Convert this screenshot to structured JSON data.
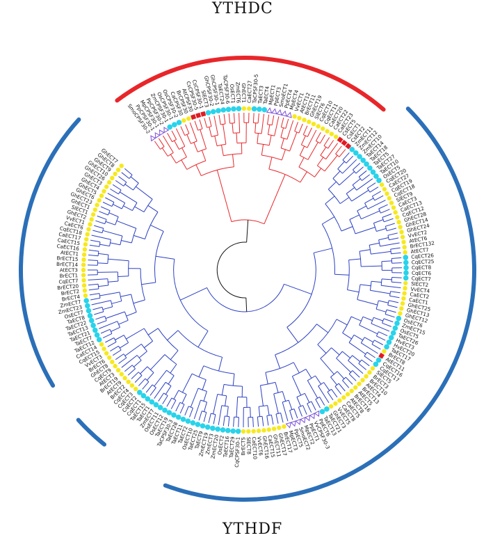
{
  "titles": {
    "top": "YTHDC",
    "bottom": "YTHDF"
  },
  "colors": {
    "ythdc_branch": "#e8262a",
    "ythdf_branch": "#2a3fc4",
    "ythdc_arc": "#e8262a",
    "ythdf_arc": "#2b6fb8",
    "root_branch": "#111111",
    "marker_cyan": "#29d3ea",
    "marker_yellow": "#f7e81d",
    "marker_red": "#e01b24",
    "marker_triangle": "#7a4fd6"
  },
  "leaves": [
    {
      "label": "SmoCPSF30-2",
      "marker": "triangle"
    },
    {
      "label": "PpCPSF30-1",
      "marker": "triangle"
    },
    {
      "label": "MpCPSF30-1",
      "marker": "triangle"
    },
    {
      "label": "PpCPSF30-2",
      "marker": "triangle"
    },
    {
      "label": "ZmCPSF30-1",
      "marker": "cyan"
    },
    {
      "label": "OsCPSF30-1",
      "marker": "cyan"
    },
    {
      "label": "OsCPSF30-2",
      "marker": "cyan"
    },
    {
      "label": "CaCPSF30",
      "marker": "yellow"
    },
    {
      "label": "BrCPSF30",
      "marker": "yellow"
    },
    {
      "label": "AtCPSF30",
      "marker": "red"
    },
    {
      "label": "CsCPSF30-5",
      "marker": "red"
    },
    {
      "label": "CsCPSF30-1",
      "marker": "red"
    },
    {
      "label": "SlECT3",
      "marker": "cyan"
    },
    {
      "label": "GhCPSF30-2",
      "marker": "cyan"
    },
    {
      "label": "GhCPSF30-1",
      "marker": "cyan"
    },
    {
      "label": "TaECT24",
      "marker": "cyan"
    },
    {
      "label": "TaCPSF30-6",
      "marker": "cyan"
    },
    {
      "label": "OsECT1",
      "marker": "cyan"
    },
    {
      "label": "ZmECT6",
      "marker": "cyan"
    },
    {
      "label": "GhECT1",
      "marker": "yellow"
    },
    {
      "label": "CaECT27",
      "marker": "yellow"
    },
    {
      "label": "TaCPSF30-5",
      "marker": "cyan"
    },
    {
      "label": "TaECT3",
      "marker": "cyan"
    },
    {
      "label": "TaECT4",
      "marker": "cyan"
    },
    {
      "label": "MpECT1",
      "marker": "triangle"
    },
    {
      "label": "PpECT3",
      "marker": "triangle"
    },
    {
      "label": "SmoECT1",
      "marker": "triangle"
    },
    {
      "label": "PpECT4",
      "marker": "triangle"
    },
    {
      "label": "MpECT4",
      "marker": "triangle"
    },
    {
      "label": "VvECT1",
      "marker": "yellow"
    },
    {
      "label": "AtECT12",
      "marker": "yellow"
    },
    {
      "label": "BrECT11",
      "marker": "yellow"
    },
    {
      "label": "GhECT19",
      "marker": "yellow"
    },
    {
      "label": "SlECT6",
      "marker": "yellow"
    },
    {
      "label": "CqECT10",
      "marker": "yellow"
    },
    {
      "label": "CqECT11",
      "marker": "yellow"
    },
    {
      "label": "CaECT20",
      "marker": "yellow"
    },
    {
      "label": "CaECT22",
      "marker": "yellow"
    },
    {
      "label": "CaECT23",
      "marker": "yellow"
    },
    {
      "label": "CsECT5",
      "marker": "red"
    },
    {
      "label": "CsECT1",
      "marker": "red"
    },
    {
      "label": "CsECT2",
      "marker": "red"
    },
    {
      "label": "ZmECT11",
      "marker": "cyan"
    },
    {
      "label": "ZmECT12",
      "marker": "cyan"
    },
    {
      "label": "ZmECT10",
      "marker": "cyan"
    },
    {
      "label": "TaECT14",
      "marker": "cyan"
    },
    {
      "label": "TaECT18",
      "marker": "cyan"
    },
    {
      "label": "TaECT5",
      "marker": "cyan"
    },
    {
      "label": "TaECT27",
      "marker": "cyan"
    },
    {
      "label": "TaECT10",
      "marker": "cyan"
    },
    {
      "label": "OsECT5",
      "marker": "cyan"
    },
    {
      "label": "CqECT20",
      "marker": "yellow"
    },
    {
      "label": "CaECT27",
      "marker": "yellow"
    },
    {
      "label": "CqECT19",
      "marker": "yellow"
    },
    {
      "label": "CqECT18",
      "marker": "yellow"
    },
    {
      "label": "SlECT9",
      "marker": "yellow"
    },
    {
      "label": "CaECT3",
      "marker": "yellow"
    },
    {
      "label": "CaECT13",
      "marker": "yellow"
    },
    {
      "label": "CqECT12",
      "marker": "yellow"
    },
    {
      "label": "GhECT28",
      "marker": "yellow"
    },
    {
      "label": "GhECT14",
      "marker": "yellow"
    },
    {
      "label": "GhECT24",
      "marker": "yellow"
    },
    {
      "label": "VvECT2",
      "marker": "yellow"
    },
    {
      "label": "AtECT6",
      "marker": "yellow"
    },
    {
      "label": "BrECT132",
      "marker": "yellow"
    },
    {
      "label": "AtECT7",
      "marker": "yellow"
    },
    {
      "label": "CqECT26",
      "marker": "cyan"
    },
    {
      "label": "CqECT25",
      "marker": "cyan"
    },
    {
      "label": "CqECT8",
      "marker": "cyan"
    },
    {
      "label": "CqECT6",
      "marker": "cyan"
    },
    {
      "label": "CqECT7",
      "marker": "cyan"
    },
    {
      "label": "SlECT2",
      "marker": "yellow"
    },
    {
      "label": "VvECT4",
      "marker": "yellow"
    },
    {
      "label": "CaECT2",
      "marker": "yellow"
    },
    {
      "label": "CaECT1",
      "marker": "yellow"
    },
    {
      "label": "GhECT25",
      "marker": "yellow"
    },
    {
      "label": "GhECT13",
      "marker": "yellow"
    },
    {
      "label": "GhECT12",
      "marker": "yellow"
    },
    {
      "label": "OsECT6",
      "marker": "cyan"
    },
    {
      "label": "ZmECT15",
      "marker": "cyan"
    },
    {
      "label": "OsECT5",
      "marker": "cyan"
    },
    {
      "label": "TaECT26",
      "marker": "cyan"
    },
    {
      "label": "HvECT3",
      "marker": "cyan"
    },
    {
      "label": "HvECT20",
      "marker": "cyan"
    },
    {
      "label": "TaECT17",
      "marker": "cyan"
    },
    {
      "label": "BrECT8",
      "marker": "yellow"
    },
    {
      "label": "AtECT11",
      "marker": "red"
    },
    {
      "label": "CqECT16",
      "marker": "cyan"
    },
    {
      "label": "CqECT17",
      "marker": "cyan"
    },
    {
      "label": "SlECT5",
      "marker": "yellow"
    },
    {
      "label": "BrECT3",
      "marker": "yellow"
    },
    {
      "label": "BrECT10",
      "marker": "yellow"
    },
    {
      "label": "AtECT4",
      "marker": "yellow"
    },
    {
      "label": "BrECT13",
      "marker": "yellow"
    },
    {
      "label": "AtECT5",
      "marker": "yellow"
    },
    {
      "label": "BrECT16",
      "marker": "yellow"
    },
    {
      "label": "AtECT8",
      "marker": "yellow"
    },
    {
      "label": "CaECT5",
      "marker": "yellow"
    },
    {
      "label": "CaECT8",
      "marker": "yellow"
    },
    {
      "label": "VvECT5",
      "marker": "yellow"
    },
    {
      "label": "GhECT3",
      "marker": "yellow"
    },
    {
      "label": "TaECT21",
      "marker": "cyan"
    },
    {
      "label": "TaECT13",
      "marker": "cyan"
    },
    {
      "label": "PpECT6",
      "marker": "triangle"
    },
    {
      "label": "VvCPSF30-3",
      "marker": "triangle"
    },
    {
      "label": "PpECT1",
      "marker": "triangle"
    },
    {
      "label": "MpECT2",
      "marker": "triangle"
    },
    {
      "label": "SmoECT2",
      "marker": "triangle"
    },
    {
      "label": "PpECT5",
      "marker": "triangle"
    },
    {
      "label": "MpECT3",
      "marker": "triangle"
    },
    {
      "label": "BrECT17",
      "marker": "yellow"
    },
    {
      "label": "GhECT17",
      "marker": "yellow"
    },
    {
      "label": "GhECT11",
      "marker": "yellow"
    },
    {
      "label": "CaECT15",
      "marker": "yellow"
    },
    {
      "label": "GhECT16",
      "marker": "yellow"
    },
    {
      "label": "VvECT6",
      "marker": "yellow"
    },
    {
      "label": "CaECT10",
      "marker": "yellow"
    },
    {
      "label": "SlECT8",
      "marker": "yellow"
    },
    {
      "label": "BrECT5",
      "marker": "yellow"
    },
    {
      "label": "CqCPSF30-1",
      "marker": "cyan"
    },
    {
      "label": "TaECT29",
      "marker": "cyan"
    },
    {
      "label": "TaECT16",
      "marker": "cyan"
    },
    {
      "label": "OsECT2",
      "marker": "cyan"
    },
    {
      "label": "ZmECT20",
      "marker": "cyan"
    },
    {
      "label": "ZmECT3",
      "marker": "cyan"
    },
    {
      "label": "ZmECT19",
      "marker": "cyan"
    },
    {
      "label": "TaECT9",
      "marker": "cyan"
    },
    {
      "label": "TaECT25",
      "marker": "cyan"
    },
    {
      "label": "OsECT10",
      "marker": "cyan"
    },
    {
      "label": "TaECT2",
      "marker": "cyan"
    },
    {
      "label": "TaECT11",
      "marker": "cyan"
    },
    {
      "label": "TaECT28",
      "marker": "cyan"
    },
    {
      "label": "TaCPSF30-3",
      "marker": "cyan"
    },
    {
      "label": "TaECT19",
      "marker": "cyan"
    },
    {
      "label": "OsECT12",
      "marker": "cyan"
    },
    {
      "label": "OsECT11",
      "marker": "cyan"
    },
    {
      "label": "ZmECT7",
      "marker": "cyan"
    },
    {
      "label": "TaECT1",
      "marker": "cyan"
    },
    {
      "label": "TaECT15",
      "marker": "cyan"
    },
    {
      "label": "CqECT1",
      "marker": "cyan"
    },
    {
      "label": "CqECT2",
      "marker": "cyan"
    },
    {
      "label": "CqECT3",
      "marker": "yellow"
    },
    {
      "label": "CqECT4",
      "marker": "yellow"
    },
    {
      "label": "BrECT2",
      "marker": "yellow"
    },
    {
      "label": "AtECT9",
      "marker": "yellow"
    },
    {
      "label": "BrECT19",
      "marker": "yellow"
    },
    {
      "label": "AtECT3",
      "marker": "yellow"
    },
    {
      "label": "CqECT9",
      "marker": "yellow"
    },
    {
      "label": "GhECT8",
      "marker": "yellow"
    },
    {
      "label": "BrECT6",
      "marker": "yellow"
    },
    {
      "label": "VvECT3",
      "marker": "yellow"
    },
    {
      "label": "CqECT15",
      "marker": "yellow"
    },
    {
      "label": "CaECT14",
      "marker": "yellow"
    },
    {
      "label": "TaECT12",
      "marker": "cyan"
    },
    {
      "label": "TaECT7",
      "marker": "cyan"
    },
    {
      "label": "TaECT21",
      "marker": "cyan"
    },
    {
      "label": "TaECT13",
      "marker": "cyan"
    },
    {
      "label": "TaECT22",
      "marker": "cyan"
    },
    {
      "label": "TaECT8",
      "marker": "cyan"
    },
    {
      "label": "OsECT7",
      "marker": "cyan"
    },
    {
      "label": "ZmECT23",
      "marker": "cyan"
    },
    {
      "label": "ZmECT7",
      "marker": "cyan"
    },
    {
      "label": "BrECT4",
      "marker": "yellow"
    },
    {
      "label": "BrECT2",
      "marker": "yellow"
    },
    {
      "label": "BrECT20",
      "marker": "yellow"
    },
    {
      "label": "CqECT7",
      "marker": "yellow"
    },
    {
      "label": "BrECT1",
      "marker": "yellow"
    },
    {
      "label": "AtECT3",
      "marker": "yellow"
    },
    {
      "label": "BrECT14",
      "marker": "yellow"
    },
    {
      "label": "BrECT15",
      "marker": "yellow"
    },
    {
      "label": "AtECT1",
      "marker": "yellow"
    },
    {
      "label": "CaECT16",
      "marker": "yellow"
    },
    {
      "label": "CaECT15",
      "marker": "yellow"
    },
    {
      "label": "CaECT17",
      "marker": "yellow"
    },
    {
      "label": "CqECT18",
      "marker": "yellow"
    },
    {
      "label": "CaECT6",
      "marker": "yellow"
    },
    {
      "label": "VvECT1",
      "marker": "yellow"
    },
    {
      "label": "GhECT2",
      "marker": "yellow"
    },
    {
      "label": "SlECT1",
      "marker": "yellow"
    },
    {
      "label": "GhECT1",
      "marker": "yellow"
    },
    {
      "label": "GhECT23",
      "marker": "yellow"
    },
    {
      "label": "GhECT6",
      "marker": "yellow"
    },
    {
      "label": "GhECT5",
      "marker": "yellow"
    },
    {
      "label": "GhECT4",
      "marker": "yellow"
    },
    {
      "label": "GhECT3",
      "marker": "yellow"
    },
    {
      "label": "GhECT26",
      "marker": "yellow"
    },
    {
      "label": "GhECT10",
      "marker": "yellow"
    },
    {
      "label": "GhECT9",
      "marker": "yellow"
    },
    {
      "label": "GhECT8",
      "marker": "yellow"
    },
    {
      "label": "GhECT7",
      "marker": "yellow"
    }
  ]
}
